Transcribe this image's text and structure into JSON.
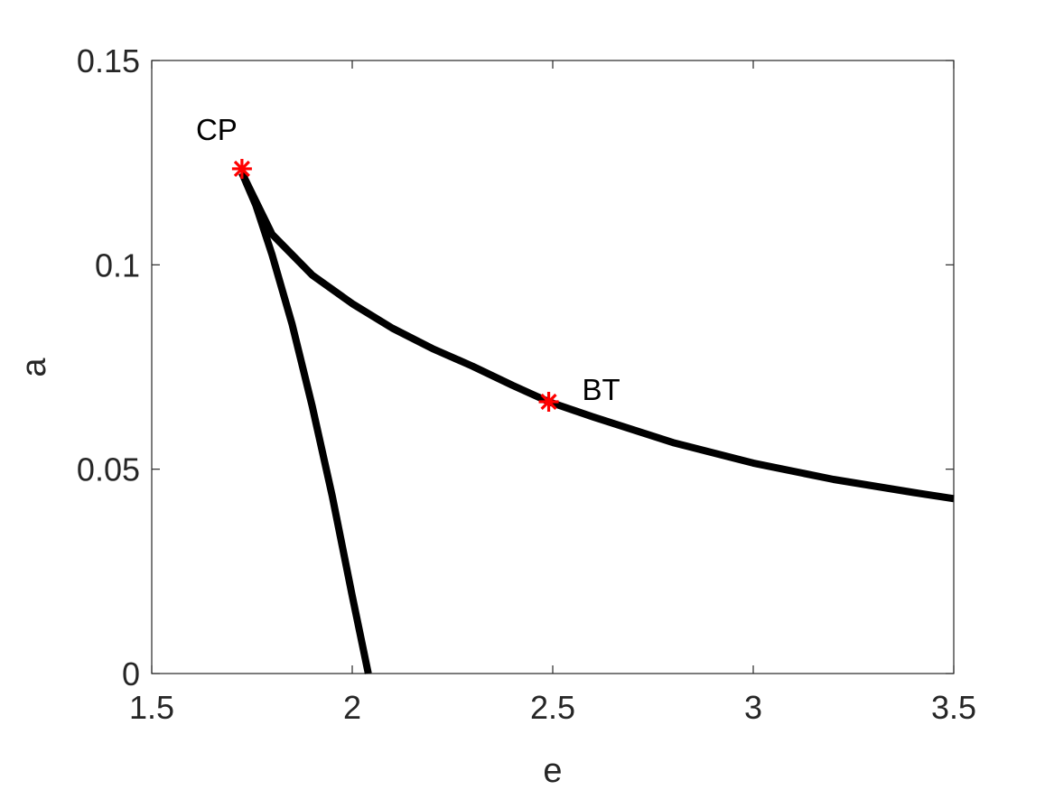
{
  "chart_data": {
    "type": "line",
    "title": "",
    "xlabel": "e",
    "ylabel": "a",
    "xlim": [
      1.5,
      3.5
    ],
    "ylim": [
      0,
      0.15
    ],
    "xticks": [
      1.5,
      2,
      2.5,
      3,
      3.5
    ],
    "xtick_labels": [
      "1.5",
      "2",
      "2.5",
      "3",
      "3.5"
    ],
    "yticks": [
      0,
      0.05,
      0.1,
      0.15
    ],
    "ytick_labels": [
      "0",
      "0.05",
      "0.1",
      "0.15"
    ],
    "grid": false,
    "series": [
      {
        "color": "#000000",
        "points": [
          [
            1.725,
            0.1225
          ],
          [
            1.76,
            0.1145
          ],
          [
            1.8,
            0.1025
          ],
          [
            1.85,
            0.0855
          ],
          [
            1.9,
            0.0655
          ],
          [
            1.95,
            0.0435
          ],
          [
            2.0,
            0.019
          ],
          [
            2.04,
            0.0
          ]
        ]
      },
      {
        "color": "#000000",
        "points": [
          [
            1.725,
            0.1225
          ],
          [
            1.8,
            0.1075
          ],
          [
            1.9,
            0.0975
          ],
          [
            2.0,
            0.0905
          ],
          [
            2.1,
            0.0845
          ],
          [
            2.2,
            0.0795
          ],
          [
            2.3,
            0.0752
          ],
          [
            2.4,
            0.0705
          ],
          [
            2.49,
            0.0665
          ],
          [
            2.6,
            0.0628
          ],
          [
            2.8,
            0.0565
          ],
          [
            3.0,
            0.0515
          ],
          [
            3.2,
            0.0475
          ],
          [
            3.4,
            0.0443
          ],
          [
            3.5,
            0.0428
          ]
        ]
      }
    ],
    "markers": [
      {
        "label": "CP",
        "x": 1.725,
        "y": 0.1235,
        "color": "#ff0000",
        "symbol": "asterisk"
      },
      {
        "label": "BT",
        "x": 2.49,
        "y": 0.0665,
        "color": "#ff0000",
        "symbol": "asterisk"
      }
    ]
  }
}
